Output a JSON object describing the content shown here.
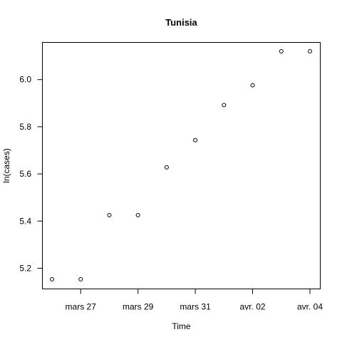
{
  "chart_data": {
    "type": "scatter",
    "title": "Tunisia",
    "xlabel": "Time",
    "ylabel": "ln(cases)",
    "x": [
      "2020-03-26",
      "2020-03-27",
      "2020-03-28",
      "2020-03-29",
      "2020-03-30",
      "2020-03-31",
      "2020-04-01",
      "2020-04-02",
      "2020-04-03",
      "2020-04-04"
    ],
    "y": [
      5.153,
      5.153,
      5.425,
      5.425,
      5.628,
      5.743,
      5.892,
      5.976,
      6.12,
      6.12
    ],
    "xlim": [
      "2020-03-26",
      "2020-04-04"
    ],
    "ylim": [
      5.15,
      6.12
    ],
    "x_ticks": [
      {
        "date": "2020-03-27",
        "label": "mars 27"
      },
      {
        "date": "2020-03-29",
        "label": "mars 29"
      },
      {
        "date": "2020-03-31",
        "label": "mars 31"
      },
      {
        "date": "2020-04-02",
        "label": "avr. 02"
      },
      {
        "date": "2020-04-04",
        "label": "avr. 04"
      }
    ],
    "y_ticks": [
      {
        "value": 5.2,
        "label": "5.2"
      },
      {
        "value": 5.4,
        "label": "5.4"
      },
      {
        "value": 5.6,
        "label": "5.6"
      },
      {
        "value": 5.8,
        "label": "5.8"
      },
      {
        "value": 6.0,
        "label": "6.0"
      }
    ],
    "grid": false,
    "legend": "none",
    "marker": "open-circle",
    "point_color": "#000000"
  }
}
